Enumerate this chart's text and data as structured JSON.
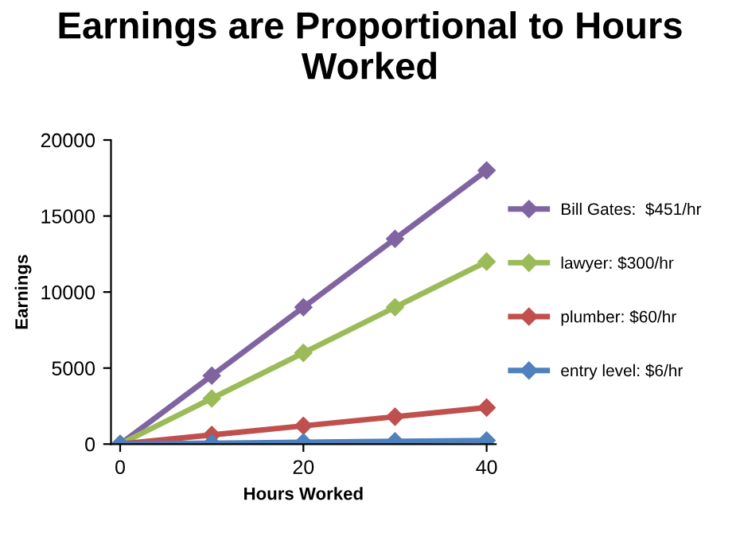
{
  "chart_data": {
    "type": "line",
    "title": "Earnings are Proportional to Hours Worked",
    "xlabel": "Hours Worked",
    "ylabel": "Earnings",
    "x": [
      0,
      10,
      20,
      30,
      40
    ],
    "series": [
      {
        "name": "Bill Gates:  $451/hr",
        "color": "#8064a2",
        "values": [
          0,
          4500,
          9000,
          13500,
          18000
        ]
      },
      {
        "name": "lawyer: $300/hr",
        "color": "#9bbb59",
        "values": [
          0,
          3000,
          6000,
          9000,
          12000
        ]
      },
      {
        "name": "plumber: $60/hr",
        "color": "#c0504d",
        "values": [
          0,
          600,
          1200,
          1800,
          2400
        ]
      },
      {
        "name": "entry level: $6/hr",
        "color": "#4f81bd",
        "values": [
          0,
          60,
          120,
          180,
          240
        ]
      }
    ],
    "xlim": [
      -1,
      41
    ],
    "xticks": [
      0,
      20,
      40
    ],
    "ylim": [
      0,
      20000
    ],
    "yticks": [
      0,
      5000,
      10000,
      15000,
      20000
    ],
    "marker": "diamond",
    "line_style": "solid",
    "grid": false,
    "legend": "right"
  }
}
